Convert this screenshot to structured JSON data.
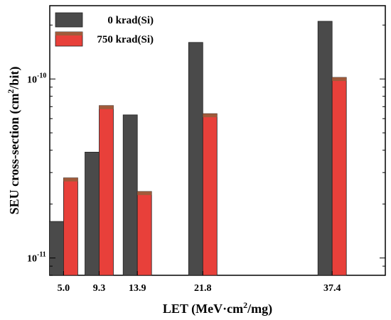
{
  "chart_data": {
    "type": "bar",
    "categories": [
      "5.0",
      "9.3",
      "13.9",
      "21.8",
      "37.4"
    ],
    "x_values": [
      5.0,
      9.3,
      13.9,
      21.8,
      37.4
    ],
    "series": [
      {
        "name": "0 krad(Si)",
        "color": "#4a4a4a",
        "values": [
          1.6e-11,
          3.9e-11,
          6.3e-11,
          1.6e-10,
          2.1e-10
        ]
      },
      {
        "name": "750 krad(Si)",
        "color": "#e8403a",
        "values": [
          2.8e-11,
          7.1e-11,
          2.35e-11,
          6.4e-11,
          1.02e-10
        ]
      }
    ],
    "xlabel_parts": [
      "LET (MeV·cm",
      "2",
      "/mg)"
    ],
    "ylabel_parts": [
      "SEU cross-section (cm",
      "2",
      "/bit)"
    ],
    "yscale": "log",
    "ylim": [
      8e-12,
      2.3e-10
    ],
    "ytick_labels": [
      {
        "value": 1e-11,
        "base": "10",
        "exp": "-11"
      },
      {
        "value": 1e-10,
        "base": "10",
        "exp": "-10"
      }
    ],
    "legend_position": "top-left",
    "grid": false
  }
}
